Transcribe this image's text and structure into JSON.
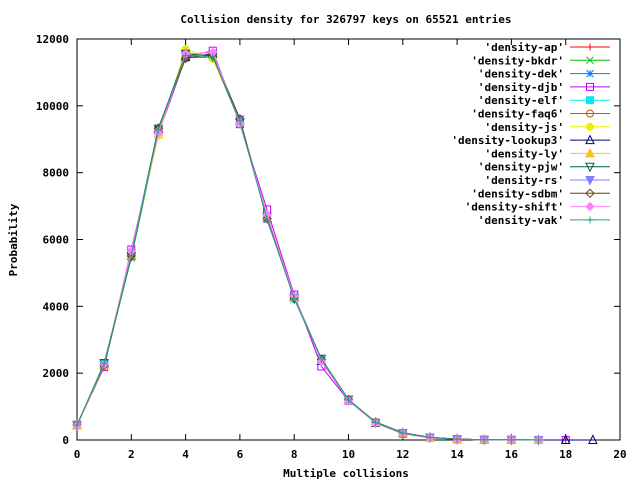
{
  "chart_data": {
    "type": "line",
    "title": "Collision density for 326797 keys on 65521 entries",
    "xlabel": "Multiple collisions",
    "ylabel": "Probability",
    "xlim": [
      0,
      20
    ],
    "ylim": [
      0,
      12000
    ],
    "xticks": [
      0,
      2,
      4,
      6,
      8,
      10,
      12,
      14,
      16,
      18,
      20
    ],
    "yticks": [
      0,
      2000,
      4000,
      6000,
      8000,
      10000,
      12000
    ],
    "xtick_labels": [
      "0",
      "2",
      "4",
      "6",
      "8",
      "10",
      "12",
      "14",
      "16",
      "18",
      "20"
    ],
    "ytick_labels": [
      "0",
      "2000",
      "4000",
      "6000",
      "8000",
      "10000",
      "12000"
    ],
    "grid": false,
    "legend_position": "top-right",
    "series": [
      {
        "name": "'density-ap'",
        "color": "#ff0000",
        "marker": "plus",
        "x": [
          0,
          1,
          2,
          3,
          4,
          5,
          6,
          7,
          8,
          9,
          10,
          11,
          12,
          13,
          14,
          15,
          16,
          17,
          18
        ],
        "y": [
          430,
          2200,
          5550,
          9250,
          11480,
          11520,
          9600,
          6650,
          4250,
          2380,
          1180,
          520,
          210,
          75,
          25,
          8,
          3,
          1,
          1
        ]
      },
      {
        "name": "'density-bkdr'",
        "color": "#00c000",
        "marker": "cross",
        "x": [
          0,
          1,
          2,
          3,
          4,
          5,
          6,
          7,
          8,
          9,
          10,
          11,
          12,
          13,
          14,
          15,
          16,
          17
        ],
        "y": [
          450,
          2260,
          5450,
          9200,
          11520,
          11500,
          9520,
          6700,
          4300,
          2420,
          1200,
          540,
          220,
          80,
          28,
          9,
          3,
          1
        ]
      },
      {
        "name": "'density-dek'",
        "color": "#0080ff",
        "marker": "star",
        "x": [
          0,
          1,
          2,
          3,
          4,
          5,
          6,
          7,
          8,
          9,
          10,
          11,
          12,
          13,
          14,
          15,
          16,
          17
        ],
        "y": [
          440,
          2250,
          5600,
          9350,
          11450,
          11450,
          9580,
          6600,
          4280,
          2400,
          1190,
          530,
          200,
          70,
          25,
          9,
          3,
          1
        ]
      },
      {
        "name": "'density-djb'",
        "color": "#c000ff",
        "marker": "square",
        "x": [
          0,
          1,
          2,
          3,
          4,
          5,
          6,
          7,
          8,
          9,
          10,
          11,
          12,
          13,
          14,
          15,
          16,
          17,
          18
        ],
        "y": [
          460,
          2180,
          5700,
          9150,
          11450,
          11650,
          9450,
          6900,
          4350,
          2200,
          1180,
          510,
          190,
          70,
          24,
          8,
          3,
          1,
          1
        ]
      },
      {
        "name": "'density-elf'",
        "color": "#00eeee",
        "marker": "square-filled",
        "x": [
          0,
          1,
          2,
          3,
          4,
          5,
          6,
          7,
          8,
          9,
          10,
          11,
          12,
          13,
          14,
          15,
          16,
          17
        ],
        "y": [
          440,
          2300,
          5500,
          9300,
          11560,
          11480,
          9500,
          6680,
          4230,
          2430,
          1210,
          520,
          210,
          76,
          26,
          8,
          2,
          1
        ]
      },
      {
        "name": "'density-faq6'",
        "color": "#c06000",
        "marker": "circle",
        "x": [
          0,
          1,
          2,
          3,
          4,
          5,
          6,
          7,
          8,
          9,
          10,
          11,
          12,
          13,
          14,
          15,
          16,
          17
        ],
        "y": [
          450,
          2240,
          5560,
          9280,
          11500,
          11510,
          9560,
          6640,
          4260,
          2390,
          1200,
          530,
          215,
          78,
          25,
          8,
          3,
          1
        ]
      },
      {
        "name": "'density-js'",
        "color": "#eeee00",
        "marker": "circle-filled",
        "x": [
          0,
          1,
          2,
          3,
          4,
          5,
          6,
          7,
          8,
          9,
          10,
          11,
          12,
          13,
          14,
          15,
          16,
          17
        ],
        "y": [
          430,
          2210,
          5620,
          9100,
          11700,
          11400,
          9550,
          6620,
          4270,
          2410,
          1190,
          520,
          205,
          74,
          25,
          8,
          3,
          1
        ]
      },
      {
        "name": "'density-lookup3'",
        "color": "#000080",
        "marker": "triangle",
        "x": [
          0,
          1,
          2,
          3,
          4,
          5,
          6,
          7,
          8,
          9,
          10,
          11,
          12,
          13,
          14,
          15,
          16,
          17,
          18,
          19
        ],
        "y": [
          445,
          2270,
          5530,
          9310,
          11470,
          11560,
          9570,
          6660,
          4290,
          2370,
          1200,
          520,
          210,
          75,
          26,
          8,
          3,
          1,
          1,
          1
        ]
      },
      {
        "name": "'density-ly'",
        "color": "#ffc020",
        "marker": "triangle-filled",
        "x": [
          0,
          1,
          2,
          3,
          4,
          5,
          6,
          7,
          8,
          9,
          10,
          11,
          12,
          13,
          14,
          15,
          16,
          17
        ],
        "y": [
          450,
          2250,
          5540,
          9270,
          11600,
          11500,
          9540,
          6670,
          4250,
          2400,
          1200,
          530,
          212,
          76,
          25,
          8,
          3,
          1
        ]
      },
      {
        "name": "'density-pjw'",
        "color": "#006040",
        "marker": "triangle-down",
        "x": [
          0,
          1,
          2,
          3,
          4,
          5,
          6,
          7,
          8,
          9,
          10,
          11,
          12,
          13,
          14,
          15,
          16,
          17
        ],
        "y": [
          440,
          2300,
          5500,
          9300,
          11560,
          11480,
          9500,
          6680,
          4230,
          2430,
          1210,
          520,
          210,
          76,
          26,
          8,
          2,
          1
        ]
      },
      {
        "name": "'density-rs'",
        "color": "#8080ff",
        "marker": "triangle-down-filled",
        "x": [
          0,
          1,
          2,
          3,
          4,
          5,
          6,
          7,
          8,
          9,
          10,
          11,
          12,
          13,
          14,
          15,
          16,
          17
        ],
        "y": [
          450,
          2240,
          5580,
          9220,
          11490,
          11530,
          9590,
          6640,
          4280,
          2400,
          1190,
          525,
          208,
          74,
          25,
          8,
          3,
          1
        ]
      },
      {
        "name": "'density-sdbm'",
        "color": "#604000",
        "marker": "diamond",
        "x": [
          0,
          1,
          2,
          3,
          4,
          5,
          6,
          7,
          8,
          9,
          10,
          11,
          12,
          13,
          14,
          15,
          16,
          17
        ],
        "y": [
          455,
          2230,
          5510,
          9330,
          11420,
          11540,
          9610,
          6620,
          4260,
          2410,
          1205,
          535,
          212,
          77,
          26,
          9,
          3,
          1
        ]
      },
      {
        "name": "'density-shift'",
        "color": "#ff80ff",
        "marker": "diamond-filled",
        "x": [
          0,
          1,
          2,
          3,
          4,
          5,
          6,
          7,
          8,
          9,
          10,
          11,
          12,
          13,
          14,
          15,
          16,
          17
        ],
        "y": [
          440,
          2260,
          5650,
          9180,
          11550,
          11600,
          9480,
          6750,
          4300,
          2350,
          1180,
          515,
          205,
          73,
          24,
          8,
          3,
          1
        ]
      },
      {
        "name": "'density-vak'",
        "color": "#20a080",
        "marker": "plus",
        "x": [
          0,
          1,
          2,
          3,
          4,
          5,
          6,
          7,
          8,
          9,
          10,
          11,
          12,
          13,
          14,
          15,
          16,
          17
        ],
        "y": [
          445,
          2280,
          5520,
          9290,
          11510,
          11470,
          9550,
          6600,
          4240,
          2420,
          1200,
          525,
          210,
          75,
          25,
          8,
          3,
          1
        ]
      }
    ]
  }
}
